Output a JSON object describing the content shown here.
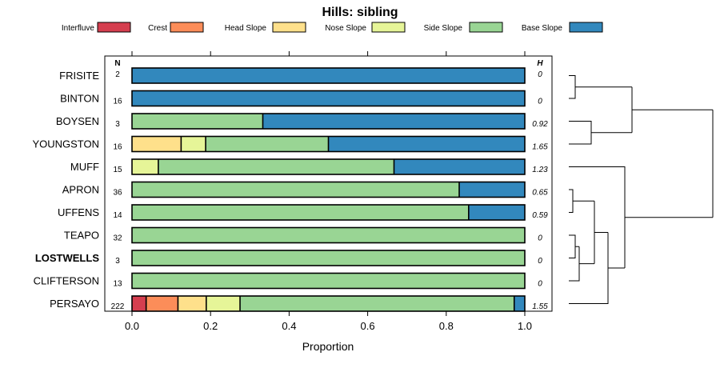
{
  "chart_data": {
    "type": "bar",
    "stacked": "proportion",
    "orientation": "horizontal",
    "title": "Hills: sibling",
    "xlabel": "Proportion",
    "ylabel": "",
    "xlim": [
      0,
      1
    ],
    "xticks": [
      0.0,
      0.2,
      0.4,
      0.6,
      0.8,
      1.0
    ],
    "xtick_labels": [
      "0.0",
      "0.2",
      "0.4",
      "0.6",
      "0.8",
      "1.0"
    ],
    "n_header": "N",
    "h_header": "H",
    "legend": [
      {
        "name": "Interfluve",
        "color": "#D53E4F"
      },
      {
        "name": "Crest",
        "color": "#FC8D59"
      },
      {
        "name": "Head Slope",
        "color": "#FEE08B"
      },
      {
        "name": "Nose Slope",
        "color": "#E6F598"
      },
      {
        "name": "Side Slope",
        "color": "#99D594"
      },
      {
        "name": "Base Slope",
        "color": "#3288BD"
      }
    ],
    "rows": [
      {
        "name": "FRISITE",
        "bold": false,
        "n": "2",
        "h": "0",
        "values": [
          0,
          0,
          0,
          0,
          0,
          1
        ]
      },
      {
        "name": "BINTON",
        "bold": false,
        "n": "16",
        "h": "0",
        "values": [
          0,
          0,
          0,
          0,
          0,
          1
        ]
      },
      {
        "name": "BOYSEN",
        "bold": false,
        "n": "3",
        "h": "0.92",
        "values": [
          0,
          0,
          0,
          0,
          0.333,
          0.667
        ]
      },
      {
        "name": "YOUNGSTON",
        "bold": false,
        "n": "16",
        "h": "1.65",
        "values": [
          0,
          0,
          0.125,
          0.0625,
          0.3125,
          0.5
        ]
      },
      {
        "name": "MUFF",
        "bold": false,
        "n": "15",
        "h": "1.23",
        "values": [
          0,
          0,
          0,
          0.067,
          0.6,
          0.333
        ]
      },
      {
        "name": "APRON",
        "bold": false,
        "n": "36",
        "h": "0.65",
        "values": [
          0,
          0,
          0,
          0,
          0.833,
          0.167
        ]
      },
      {
        "name": "UFFENS",
        "bold": false,
        "n": "14",
        "h": "0.59",
        "values": [
          0,
          0,
          0,
          0,
          0.857,
          0.143
        ]
      },
      {
        "name": "TEAPO",
        "bold": false,
        "n": "32",
        "h": "0",
        "values": [
          0,
          0,
          0,
          0,
          1,
          0
        ]
      },
      {
        "name": "LOSTWELLS",
        "bold": true,
        "n": "3",
        "h": "0",
        "values": [
          0,
          0,
          0,
          0,
          1,
          0
        ]
      },
      {
        "name": "CLIFTERSON",
        "bold": false,
        "n": "13",
        "h": "0",
        "values": [
          0,
          0,
          0,
          0,
          1,
          0
        ]
      },
      {
        "name": "PERSAYO",
        "bold": false,
        "n": "222",
        "h": "1.55",
        "values": [
          0.036,
          0.081,
          0.072,
          0.086,
          0.698,
          0.027
        ]
      }
    ]
  }
}
